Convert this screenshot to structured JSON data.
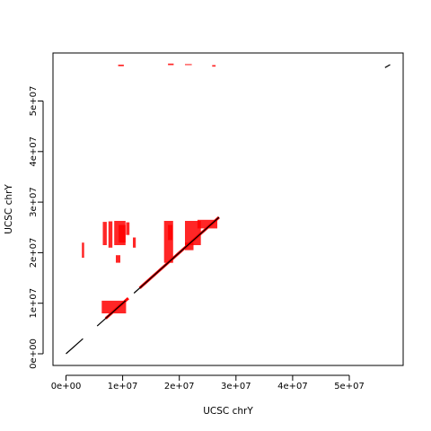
{
  "chart_data": {
    "type": "scatter",
    "title": "",
    "xlabel": "UCSC chrY",
    "ylabel": "UCSC chrY",
    "xlim": [
      -2300000,
      59500000
    ],
    "ylim": [
      -2300000,
      59500000
    ],
    "x_ticks": [
      0,
      10000000,
      20000000,
      30000000,
      40000000,
      50000000
    ],
    "x_tick_labels": [
      "0e+00",
      "1e+07",
      "2e+07",
      "3e+07",
      "4e+07",
      "5e+07"
    ],
    "y_ticks": [
      0,
      10000000,
      20000000,
      30000000,
      40000000,
      50000000
    ],
    "y_tick_labels": [
      "0e+00",
      "1e+07",
      "2e+07",
      "3e+07",
      "4e+07",
      "5e+07"
    ],
    "grid": false,
    "colors": {
      "forward": "#ff0000",
      "reverse": "#000000",
      "axis": "#000000"
    },
    "diagonal_black": [
      {
        "x": [
          0,
          3000000
        ],
        "y": [
          0,
          3000000
        ]
      },
      {
        "x": [
          5500000,
          10500000
        ],
        "y": [
          5500000,
          10500000
        ]
      },
      {
        "x": [
          12000000,
          27000000
        ],
        "y": [
          12000000,
          27000000
        ]
      },
      {
        "x": [
          56300000,
          57200000
        ],
        "y": [
          56600000,
          57200000
        ]
      }
    ],
    "diagonal_red": [
      {
        "x": [
          7000000,
          11000000
        ],
        "y": [
          7000000,
          11000000
        ]
      },
      {
        "x": [
          13000000,
          27000000
        ],
        "y": [
          13000000,
          27000000
        ]
      }
    ],
    "red_blocks": [
      {
        "x": [
          6300000,
          10600000
        ],
        "y": [
          8000000,
          10500000
        ]
      },
      {
        "x": [
          6500000,
          7200000
        ],
        "y": [
          21500000,
          26100000
        ]
      },
      {
        "x": [
          7500000,
          8200000
        ],
        "y": [
          21000000,
          26200000
        ]
      },
      {
        "x": [
          8500000,
          10500000
        ],
        "y": [
          21500000,
          26300000
        ]
      },
      {
        "x": [
          8800000,
          9600000
        ],
        "y": [
          18000000,
          19500000
        ]
      },
      {
        "x": [
          9300000,
          10500000
        ],
        "y": [
          22000000,
          25500000
        ]
      },
      {
        "x": [
          10600000,
          11200000
        ],
        "y": [
          23500000,
          26000000
        ]
      },
      {
        "x": [
          11800000,
          12300000
        ],
        "y": [
          21000000,
          23000000
        ]
      },
      {
        "x": [
          17300000,
          18900000
        ],
        "y": [
          18000000,
          26300000
        ]
      },
      {
        "x": [
          18000000,
          18800000
        ],
        "y": [
          22500000,
          25500000
        ]
      },
      {
        "x": [
          21000000,
          23800000
        ],
        "y": [
          21500000,
          26300000
        ]
      },
      {
        "x": [
          21000000,
          22500000
        ],
        "y": [
          20500000,
          22000000
        ]
      },
      {
        "x": [
          23200000,
          26700000
        ],
        "y": [
          24800000,
          26500000
        ]
      },
      {
        "x": [
          2800000,
          3200000
        ],
        "y": [
          19000000,
          22000000
        ]
      },
      {
        "x": [
          18000000,
          19000000
        ],
        "y": [
          57100000,
          57400000
        ]
      },
      {
        "x": [
          21000000,
          22200000
        ],
        "y": [
          57100000,
          57300000
        ]
      },
      {
        "x": [
          9200000,
          10200000
        ],
        "y": [
          56900000,
          57200000
        ]
      },
      {
        "x": [
          25800000,
          26400000
        ],
        "y": [
          56800000,
          57100000
        ]
      }
    ]
  }
}
